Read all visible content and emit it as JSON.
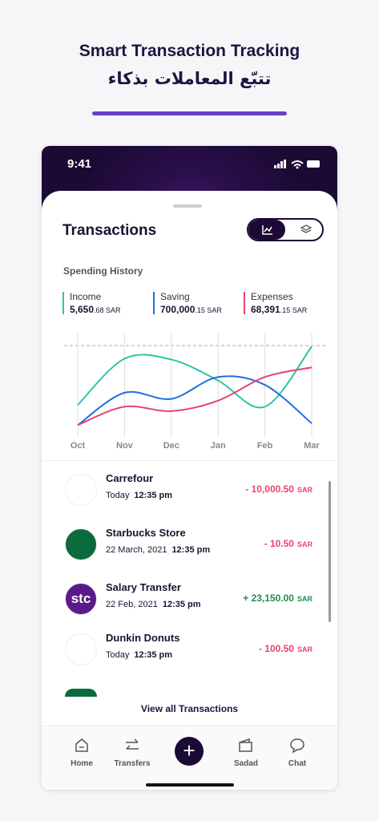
{
  "header": {
    "title": "Smart Transaction Tracking",
    "subtitle": "تتبّع المعاملات بذكاء"
  },
  "status": {
    "time": "9:41"
  },
  "screen": {
    "title": "Transactions",
    "section": "Spending History"
  },
  "totals": [
    {
      "whole": "5,650",
      "fraction": ".68 SAR"
    },
    {
      "whole": "700,000",
      "fraction": ".15 SAR"
    },
    {
      "whole": "68,391",
      "fraction": ".15 SAR"
    }
  ],
  "chart_data": {
    "type": "line",
    "categories": [
      "Oct",
      "Nov",
      "Dec",
      "Jan",
      "Feb",
      "Mar"
    ],
    "series": [
      {
        "name": "Income",
        "color": "#2ec4a6",
        "values": [
          32,
          85,
          84,
          60,
          30,
          99
        ]
      },
      {
        "name": "Saving",
        "color": "#1f6fe0",
        "values": [
          9,
          46,
          39,
          64,
          55,
          11
        ]
      },
      {
        "name": "Expenses",
        "color": "#e8436a",
        "values": [
          9,
          30,
          25,
          37,
          64,
          75
        ]
      }
    ],
    "ylim": [
      0,
      100
    ]
  },
  "transactions": [
    {
      "name": "Carrefour",
      "date": "Today",
      "time": "12:35 pm",
      "amount": "- 10,000.50",
      "currency": "SAR",
      "color": "#e8436a"
    },
    {
      "name": "Starbucks Store",
      "date": "22 March, 2021",
      "time": "12:35 pm",
      "amount": "- 10.50",
      "currency": "SAR",
      "color": "#e8436a"
    },
    {
      "name": "Salary Transfer",
      "date": "22 Feb, 2021",
      "time": "12:35 pm",
      "amount": "+ 23,150.00",
      "currency": "SAR",
      "color": "#1e8c4e",
      "logo": "stc"
    },
    {
      "name": "Dunkin Donuts",
      "date": "Today",
      "time": "12:35 pm",
      "amount": "- 100.50",
      "currency": "SAR",
      "color": "#e8436a"
    }
  ],
  "link": "View all Transactions",
  "nav": [
    "Home",
    "Transfers",
    "Sadad",
    "Chat"
  ]
}
